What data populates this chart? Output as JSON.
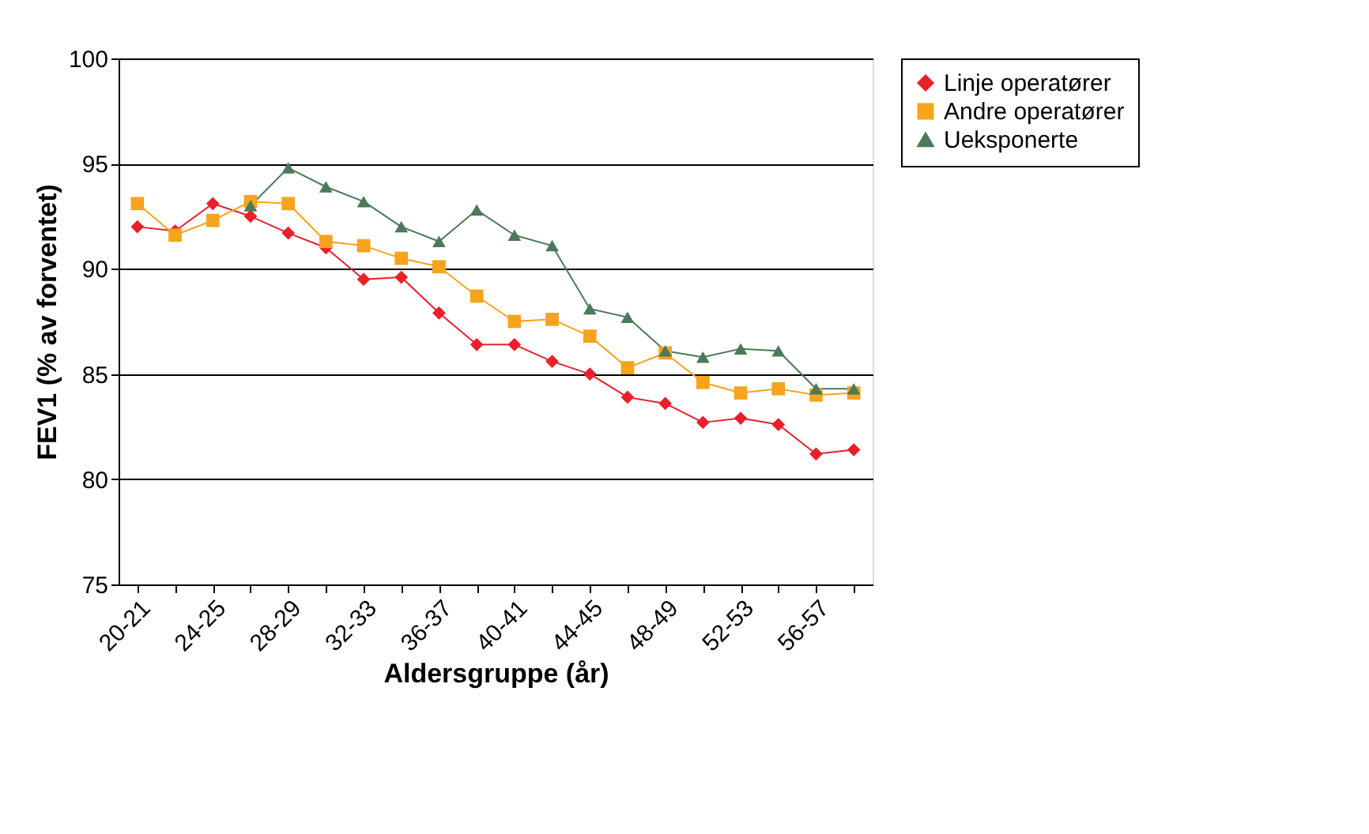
{
  "chart_data": {
    "type": "line",
    "xlabel": "Aldersgruppe (år)",
    "ylabel": "FEV1 (% av forventet)",
    "categories": [
      "20-21",
      null,
      "24-25",
      null,
      "28-29",
      null,
      "32-33",
      null,
      "36-37",
      null,
      "40-41",
      null,
      "44-45",
      null,
      "48-49",
      null,
      "52-53",
      null,
      "56-57",
      null
    ],
    "series": [
      {
        "name": "Linje operatører",
        "color": "#e8202a",
        "marker": "diamond",
        "values": [
          92.0,
          91.8,
          93.1,
          92.5,
          91.7,
          91.0,
          89.5,
          89.6,
          87.9,
          86.4,
          86.4,
          85.6,
          85.0,
          83.9,
          83.6,
          82.7,
          82.9,
          82.6,
          81.2,
          81.4
        ]
      },
      {
        "name": "Andre operatører",
        "color": "#f7a31c",
        "marker": "square",
        "values": [
          93.1,
          91.6,
          92.3,
          93.2,
          93.1,
          91.3,
          91.1,
          90.5,
          90.1,
          88.7,
          87.5,
          87.6,
          86.8,
          85.3,
          86.0,
          84.6,
          84.1,
          84.3,
          84.0,
          84.1
        ]
      },
      {
        "name": "Ueksponerte",
        "color": "#4a7a5a",
        "marker": "triangle",
        "values": [
          null,
          null,
          null,
          93.0,
          94.8,
          93.9,
          93.2,
          92.0,
          91.3,
          92.8,
          91.6,
          91.1,
          88.1,
          87.7,
          86.1,
          85.8,
          86.2,
          86.1,
          84.3,
          84.3
        ]
      }
    ],
    "ylim": [
      75,
      100
    ],
    "yticks": [
      75,
      80,
      85,
      90,
      95,
      100
    ],
    "grid": "y",
    "legend": "right",
    "line_style": "solid"
  }
}
